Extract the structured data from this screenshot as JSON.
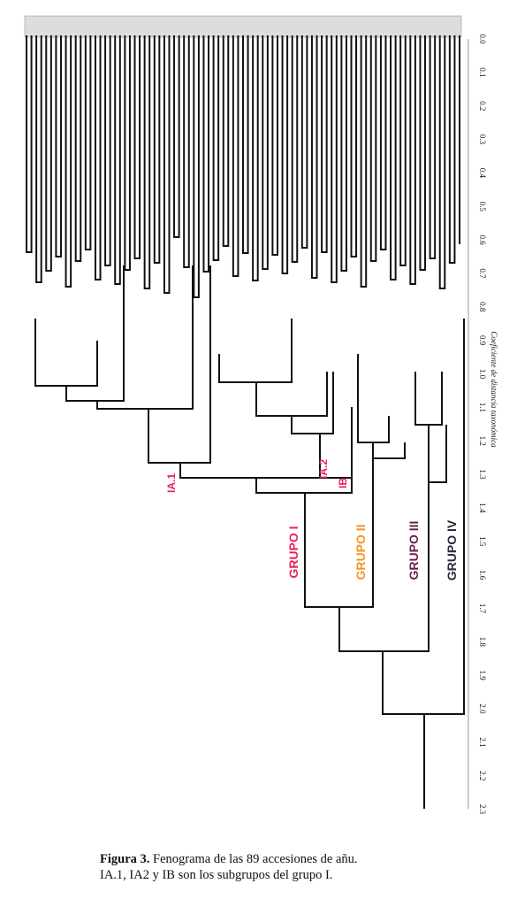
{
  "figure": {
    "caption_bold": "Figura 3.",
    "caption_line1": " Fenograma de las 89 accesiones de añu.",
    "caption_line2": "IA.1, IA2 y IB son los subgrupos del grupo I."
  },
  "axis": {
    "title": "Coeficiente de distancia taxonómica",
    "ticks": [
      "0.0",
      "0.1",
      "0.2",
      "0.3",
      "0.4",
      "0.5",
      "0.6",
      "0.7",
      "0.8",
      "0.9",
      "1.0",
      "1.1",
      "1.2",
      "1.3",
      "1.4",
      "1.5",
      "1.6",
      "1.7",
      "1.8",
      "1.9",
      "2.0",
      "2.1",
      "2.2",
      "2.3"
    ]
  },
  "groups": {
    "g1": {
      "label": "GRUPO I",
      "color": "#e8245a"
    },
    "g2": {
      "label": "GRUPO II",
      "color": "#f7941d"
    },
    "g3": {
      "label": "GRUPO III",
      "color": "#6b1f4e"
    },
    "g4": {
      "label": "GRUPO IV",
      "color": "#2b2a3a"
    }
  },
  "subgroups": {
    "ia1": {
      "label": "IA.1",
      "color": "#e8245a"
    },
    "ia2": {
      "label": "IA.2",
      "color": "#e8245a"
    },
    "ib": {
      "label": "IB",
      "color": "#e8245a"
    }
  },
  "leaves_count": 89
}
